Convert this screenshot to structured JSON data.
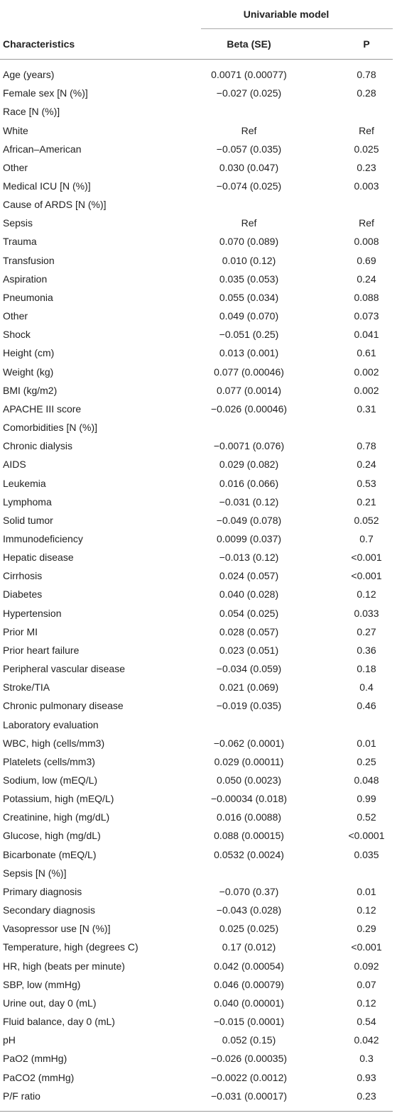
{
  "header": {
    "group": "Univariable model",
    "columns": [
      "Characteristics",
      "Beta (SE)",
      "P"
    ]
  },
  "table": {
    "rows": [
      [
        "Age (years)",
        "0.0071 (0.00077)",
        "0.78"
      ],
      [
        "Female sex [N (%)]",
        "−0.027 (0.025)",
        "0.28"
      ],
      [
        "Race [N (%)]"
      ],
      [
        "White",
        "Ref",
        "Ref"
      ],
      [
        "African–American",
        "−0.057 (0.035)",
        "0.025"
      ],
      [
        "Other",
        "0.030 (0.047)",
        "0.23"
      ],
      [
        "Medical ICU [N (%)]",
        "−0.074 (0.025)",
        "0.003"
      ],
      [
        "Cause of ARDS [N (%)]"
      ],
      [
        "Sepsis",
        "Ref",
        "Ref"
      ],
      [
        "Trauma",
        "0.070 (0.089)",
        "0.008"
      ],
      [
        "Transfusion",
        "0.010 (0.12)",
        "0.69"
      ],
      [
        "Aspiration",
        "0.035 (0.053)",
        "0.24"
      ],
      [
        "Pneumonia",
        "0.055 (0.034)",
        "0.088"
      ],
      [
        "Other",
        "0.049 (0.070)",
        "0.073"
      ],
      [
        "Shock",
        "−0.051 (0.25)",
        "0.041"
      ],
      [
        "Height (cm)",
        "0.013 (0.001)",
        "0.61"
      ],
      [
        "Weight (kg)",
        "0.077 (0.00046)",
        "0.002"
      ],
      [
        "BMI (kg/m2)",
        "0.077 (0.0014)",
        "0.002"
      ],
      [
        "APACHE III score",
        "−0.026 (0.00046)",
        "0.31"
      ],
      [
        "Comorbidities [N (%)]"
      ],
      [
        "Chronic dialysis",
        "−0.0071 (0.076)",
        "0.78"
      ],
      [
        "AIDS",
        "0.029 (0.082)",
        "0.24"
      ],
      [
        "Leukemia",
        "0.016 (0.066)",
        "0.53"
      ],
      [
        "Lymphoma",
        "−0.031 (0.12)",
        "0.21"
      ],
      [
        "Solid tumor",
        "−0.049 (0.078)",
        "0.052"
      ],
      [
        "Immunodeficiency",
        "0.0099 (0.037)",
        "0.7"
      ],
      [
        "Hepatic disease",
        "−0.013 (0.12)",
        "<0.001"
      ],
      [
        "Cirrhosis",
        "0.024 (0.057)",
        "<0.001"
      ],
      [
        "Diabetes",
        "0.040 (0.028)",
        "0.12"
      ],
      [
        "Hypertension",
        "0.054 (0.025)",
        "0.033"
      ],
      [
        "Prior MI",
        "0.028 (0.057)",
        "0.27"
      ],
      [
        "Prior heart failure",
        "0.023 (0.051)",
        "0.36"
      ],
      [
        "Peripheral vascular disease",
        "−0.034 (0.059)",
        "0.18"
      ],
      [
        "Stroke/TIA",
        "0.021 (0.069)",
        "0.4"
      ],
      [
        "Chronic pulmonary disease",
        "−0.019 (0.035)",
        "0.46"
      ],
      [
        "Laboratory evaluation"
      ],
      [
        "WBC, high (cells/mm3)",
        "−0.062 (0.0001)",
        "0.01"
      ],
      [
        "Platelets (cells/mm3)",
        "0.029 (0.00011)",
        "0.25"
      ],
      [
        "Sodium, low (mEQ/L)",
        "0.050 (0.0023)",
        "0.048"
      ],
      [
        "Potassium, high (mEQ/L)",
        "−0.00034 (0.018)",
        "0.99"
      ],
      [
        "Creatinine, high (mg/dL)",
        "0.016 (0.0088)",
        "0.52"
      ],
      [
        "Glucose, high (mg/dL)",
        "0.088 (0.00015)",
        "<0.0001"
      ],
      [
        "Bicarbonate (mEQ/L)",
        "0.0532 (0.0024)",
        "0.035"
      ],
      [
        "Sepsis [N (%)]"
      ],
      [
        "Primary diagnosis",
        "−0.070 (0.37)",
        "0.01"
      ],
      [
        "Secondary diagnosis",
        "−0.043 (0.028)",
        "0.12"
      ],
      [
        "Vasopressor use [N (%)]",
        "0.025 (0.025)",
        "0.29"
      ],
      [
        "Temperature, high (degrees C)",
        "0.17 (0.012)",
        "<0.001"
      ],
      [
        "HR, high (beats per minute)",
        "0.042 (0.00054)",
        "0.092"
      ],
      [
        "SBP, low (mmHg)",
        "0.046 (0.00079)",
        "0.07"
      ],
      [
        "Urine out, day 0 (mL)",
        "0.040 (0.00001)",
        "0.12"
      ],
      [
        "Fluid balance, day 0 (mL)",
        "−0.015 (0.0001)",
        "0.54"
      ],
      [
        "pH",
        "0.052 (0.15)",
        "0.042"
      ],
      [
        "PaO2 (mmHg)",
        "−0.026 (0.00035)",
        "0.3"
      ],
      [
        "PaCO2 (mmHg)",
        "−0.0022 (0.0012)",
        "0.93"
      ],
      [
        "P/F ratio",
        "−0.031 (0.00017)",
        "0.23"
      ]
    ]
  }
}
